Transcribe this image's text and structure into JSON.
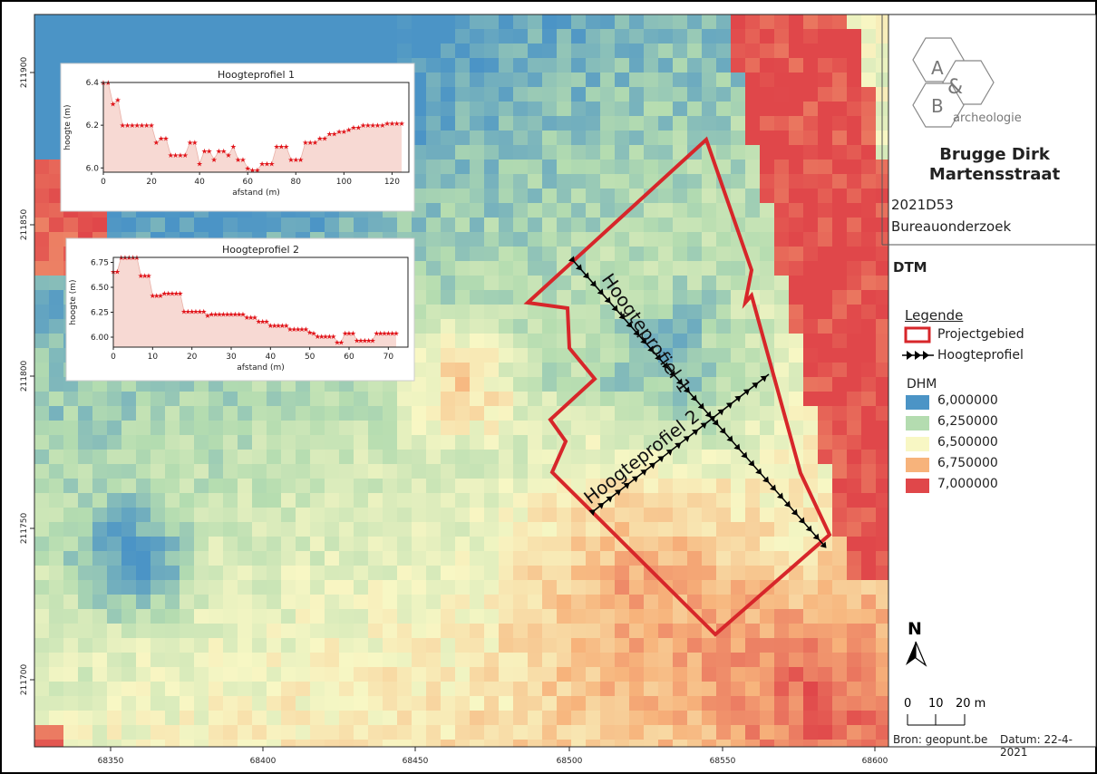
{
  "titleblock": {
    "title": "Brugge Dirk Martensstraat",
    "code": "2021D53",
    "study": "Bureauonderzoek"
  },
  "logo": {
    "letter_a": "A",
    "letter_amp": "&",
    "letter_b": "B",
    "sub": "archeologie"
  },
  "map_title": "DTM",
  "legend": {
    "title": "Legende",
    "project_area": "Projectgebied",
    "profile_line": "Hoogteprofiel",
    "ramp_title": "DHM",
    "ramp": [
      {
        "label": "6,000000",
        "color": "#4b94c6"
      },
      {
        "label": "6,250000",
        "color": "#b4dcb0"
      },
      {
        "label": "6,500000",
        "color": "#f8f7c4"
      },
      {
        "label": "6,750000",
        "color": "#f7b37b"
      },
      {
        "label": "7,000000",
        "color": "#e0474a"
      }
    ]
  },
  "north": "N",
  "scalebar": {
    "labels": [
      "0",
      "10",
      "20 m"
    ]
  },
  "source": "Bron: geopunt.be",
  "datum": "Datum: 22-4-2021",
  "map": {
    "x_ticks": [
      "68350",
      "68400",
      "68450",
      "68500",
      "68550",
      "68600"
    ],
    "y_ticks": [
      "211900",
      "211850",
      "211800",
      "211750",
      "211700"
    ],
    "profile1_label": "Hoogteprofiel 1",
    "profile2_label": "Hoogteprofiel 2"
  },
  "chart_data": [
    {
      "type": "area",
      "title": "Hoogteprofiel 1",
      "xlabel": "afstand (m)",
      "ylabel": "hoogte (m)",
      "xlim": [
        0,
        127
      ],
      "ylim": [
        5.98,
        6.4
      ],
      "xticks": [
        0,
        20,
        40,
        60,
        80,
        100,
        120
      ],
      "yticks": [
        6.0,
        6.2,
        6.4
      ],
      "x": [
        0,
        2,
        4,
        6,
        8,
        10,
        12,
        14,
        16,
        18,
        20,
        22,
        24,
        26,
        28,
        30,
        32,
        34,
        36,
        38,
        40,
        42,
        44,
        46,
        48,
        50,
        52,
        54,
        56,
        58,
        60,
        62,
        64,
        66,
        68,
        70,
        72,
        74,
        76,
        78,
        80,
        82,
        84,
        86,
        88,
        90,
        92,
        94,
        96,
        98,
        100,
        102,
        104,
        106,
        108,
        110,
        112,
        114,
        116,
        118,
        120,
        122,
        124
      ],
      "values": [
        6.4,
        6.4,
        6.3,
        6.32,
        6.2,
        6.2,
        6.2,
        6.2,
        6.2,
        6.2,
        6.2,
        6.12,
        6.14,
        6.14,
        6.06,
        6.06,
        6.06,
        6.06,
        6.12,
        6.12,
        6.02,
        6.08,
        6.08,
        6.04,
        6.08,
        6.08,
        6.06,
        6.1,
        6.04,
        6.04,
        6.0,
        5.99,
        5.99,
        6.02,
        6.02,
        6.02,
        6.1,
        6.1,
        6.1,
        6.04,
        6.04,
        6.04,
        6.12,
        6.12,
        6.12,
        6.14,
        6.14,
        6.16,
        6.16,
        6.17,
        6.17,
        6.18,
        6.19,
        6.19,
        6.2,
        6.2,
        6.2,
        6.2,
        6.2,
        6.21,
        6.21,
        6.21,
        6.21
      ]
    },
    {
      "type": "area",
      "title": "Hoogteprofiel 2",
      "xlabel": "afstand (m)",
      "ylabel": "hoogte (m)",
      "xlim": [
        0,
        75
      ],
      "ylim": [
        5.9,
        6.8
      ],
      "xticks": [
        0,
        10,
        20,
        30,
        40,
        50,
        60,
        70
      ],
      "yticks": [
        6.0,
        6.25,
        6.5,
        6.75
      ],
      "x": [
        0,
        1,
        2,
        3,
        4,
        5,
        6,
        7,
        8,
        9,
        10,
        11,
        12,
        13,
        14,
        15,
        16,
        17,
        18,
        19,
        20,
        21,
        22,
        23,
        24,
        25,
        26,
        27,
        28,
        29,
        30,
        31,
        32,
        33,
        34,
        35,
        36,
        37,
        38,
        39,
        40,
        41,
        42,
        43,
        44,
        45,
        46,
        47,
        48,
        49,
        50,
        51,
        52,
        53,
        54,
        55,
        56,
        57,
        58,
        59,
        60,
        61,
        62,
        63,
        64,
        65,
        66,
        67,
        68,
        69,
        70,
        71,
        72
      ],
      "values": [
        6.66,
        6.66,
        6.8,
        6.8,
        6.8,
        6.8,
        6.8,
        6.62,
        6.62,
        6.62,
        6.42,
        6.42,
        6.42,
        6.44,
        6.44,
        6.44,
        6.44,
        6.44,
        6.26,
        6.26,
        6.26,
        6.26,
        6.26,
        6.26,
        6.22,
        6.23,
        6.23,
        6.23,
        6.23,
        6.23,
        6.23,
        6.23,
        6.23,
        6.23,
        6.2,
        6.2,
        6.2,
        6.16,
        6.16,
        6.16,
        6.12,
        6.12,
        6.12,
        6.12,
        6.12,
        6.08,
        6.08,
        6.08,
        6.08,
        6.08,
        6.05,
        6.04,
        6.01,
        6.01,
        6.01,
        6.01,
        6.01,
        5.95,
        5.95,
        6.04,
        6.04,
        6.04,
        5.97,
        5.97,
        5.97,
        5.97,
        5.97,
        6.04,
        6.04,
        6.04,
        6.04,
        6.04,
        6.04
      ]
    }
  ]
}
